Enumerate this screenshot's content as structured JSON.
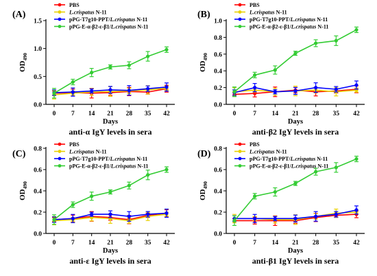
{
  "chart_data": [
    {
      "type": "line",
      "panel_label": "(A)",
      "ylabel_main": "OD",
      "ylabel_sub": "490",
      "xlabel": "Days",
      "caption": "anti-α IgY levels in sera",
      "x": [
        0,
        7,
        14,
        21,
        28,
        35,
        42
      ],
      "x_ticks": [
        "0",
        "7",
        "14",
        "21",
        "28",
        "35",
        "42"
      ],
      "ylim": [
        0.0,
        1.5
      ],
      "y_ticks": [
        "0.0",
        "0.5",
        "1.0",
        "1.5"
      ],
      "legend": "top-left",
      "series": [
        {
          "name": "PBS",
          "italic_prefix": "",
          "color": "#ff0000",
          "values": [
            0.2,
            0.21,
            0.2,
            0.21,
            0.23,
            0.22,
            0.28
          ]
        },
        {
          "name": "L.crispatus N-11",
          "italic_prefix": "L.crispatus",
          "color": "#e8d000",
          "values": [
            0.17,
            0.2,
            0.22,
            0.23,
            0.24,
            0.26,
            0.29
          ]
        },
        {
          "name": "pPG-T7g10-PPT/L.crispatus N-11",
          "italic_prefix": "pPG-T7g10-PPT/",
          "color": "#0000ff",
          "values": [
            0.21,
            0.22,
            0.24,
            0.26,
            0.25,
            0.28,
            0.31
          ]
        },
        {
          "name": "pPG-E-α-β2-ε-β1/L.crispatus N-11",
          "italic_prefix": "pPG-E-α-β2-ε-β1/",
          "color": "#33cc33",
          "values": [
            0.2,
            0.4,
            0.57,
            0.67,
            0.7,
            0.86,
            0.98
          ]
        }
      ]
    },
    {
      "type": "line",
      "panel_label": "(B)",
      "ylabel_main": "OD",
      "ylabel_sub": "490",
      "xlabel": "Days",
      "caption": "anti-β2 IgY levels in sera",
      "x": [
        0,
        7,
        14,
        21,
        28,
        35,
        42
      ],
      "x_ticks": [
        "0",
        "7",
        "14",
        "21",
        "28",
        "35",
        "42"
      ],
      "ylim": [
        0.0,
        1.0
      ],
      "y_ticks": [
        "0.0",
        "0.2",
        "0.4",
        "0.6",
        "0.8",
        "1.0"
      ],
      "legend": "top-left",
      "series": [
        {
          "name": "PBS",
          "italic_prefix": "",
          "color": "#ff0000",
          "values": [
            0.12,
            0.13,
            0.15,
            0.17,
            0.15,
            0.16,
            0.18
          ]
        },
        {
          "name": "L.crispatus N-11",
          "italic_prefix": "L.crispatus",
          "color": "#e8d000",
          "values": [
            0.15,
            0.17,
            0.15,
            0.16,
            0.17,
            0.15,
            0.17
          ]
        },
        {
          "name": "pPG-T7g10-PPT/L.crispatus N-11",
          "italic_prefix": "pPG-T7g10-PPT/",
          "color": "#0000ff",
          "values": [
            0.14,
            0.2,
            0.15,
            0.16,
            0.2,
            0.18,
            0.23
          ]
        },
        {
          "name": "pPG-E-α-β2-ε-β1/L.crispatus N-11",
          "italic_prefix": "pPG-E-α-β2-ε-β1/",
          "color": "#33cc33",
          "values": [
            0.15,
            0.35,
            0.41,
            0.61,
            0.73,
            0.76,
            0.89
          ]
        }
      ]
    },
    {
      "type": "line",
      "panel_label": "(C)",
      "ylabel_main": "OD",
      "ylabel_sub": "490",
      "xlabel": "Days",
      "caption": "anti-ε IgY levels in sera",
      "x": [
        0,
        7,
        14,
        21,
        28,
        35,
        42
      ],
      "x_ticks": [
        "0",
        "7",
        "14",
        "21",
        "28",
        "35",
        "42"
      ],
      "ylim": [
        0.0,
        0.8
      ],
      "y_ticks": [
        "0.0",
        "0.2",
        "0.4",
        "0.6",
        "0.8"
      ],
      "legend": "top-left",
      "series": [
        {
          "name": "PBS",
          "italic_prefix": "",
          "color": "#ff0000",
          "values": [
            0.13,
            0.14,
            0.16,
            0.15,
            0.13,
            0.17,
            0.19
          ]
        },
        {
          "name": "L.crispatus N-11",
          "italic_prefix": "L.crispatus",
          "color": "#e8d000",
          "values": [
            0.12,
            0.13,
            0.15,
            0.14,
            0.12,
            0.16,
            0.18
          ]
        },
        {
          "name": "pPG-T7g10-PPT/L.crispatus N-11",
          "italic_prefix": "pPG-T7g10-PPT/",
          "color": "#0000ff",
          "values": [
            0.13,
            0.14,
            0.18,
            0.18,
            0.16,
            0.18,
            0.19
          ]
        },
        {
          "name": "pPG-E-α-β2-ε-β1/L.crispatus N-11",
          "italic_prefix": "pPG-E-α-β2-ε-β1/",
          "color": "#33cc33",
          "values": [
            0.13,
            0.27,
            0.35,
            0.39,
            0.45,
            0.55,
            0.6
          ]
        }
      ]
    },
    {
      "type": "line",
      "panel_label": "(D)",
      "ylabel_main": "OD",
      "ylabel_sub": "490",
      "xlabel": "Days",
      "caption": "anti-β1 IgY levels in sera",
      "x": [
        0,
        7,
        14,
        21,
        28,
        35,
        42
      ],
      "x_ticks": [
        "0",
        "7",
        "14",
        "21",
        "28",
        "35",
        "42"
      ],
      "ylim": [
        0.0,
        0.8
      ],
      "y_ticks": [
        "0.0",
        "0.2",
        "0.4",
        "0.6",
        "0.8"
      ],
      "legend": "top-left",
      "series": [
        {
          "name": "PBS",
          "italic_prefix": "",
          "color": "#ff0000",
          "values": [
            0.12,
            0.12,
            0.12,
            0.12,
            0.15,
            0.17,
            0.18
          ]
        },
        {
          "name": "L.crispatus N-11",
          "italic_prefix": "L.crispatus",
          "color": "#e8d000",
          "values": [
            0.14,
            0.14,
            0.13,
            0.13,
            0.16,
            0.19,
            0.2
          ]
        },
        {
          "name": "pPG-T7g10-PPT/L.crispatus N-11",
          "italic_prefix": "pPG-T7g10-PPT/",
          "color": "#0000ff",
          "values": [
            0.14,
            0.14,
            0.14,
            0.14,
            0.16,
            0.18,
            0.22
          ]
        },
        {
          "name": "pPG-E-α-β2-ε-β1/L.crispatus N-11",
          "italic_prefix": "pPG-E-α-β2-ε-β1/",
          "color": "#33cc33",
          "values": [
            0.12,
            0.35,
            0.39,
            0.47,
            0.58,
            0.62,
            0.7
          ]
        }
      ]
    }
  ]
}
